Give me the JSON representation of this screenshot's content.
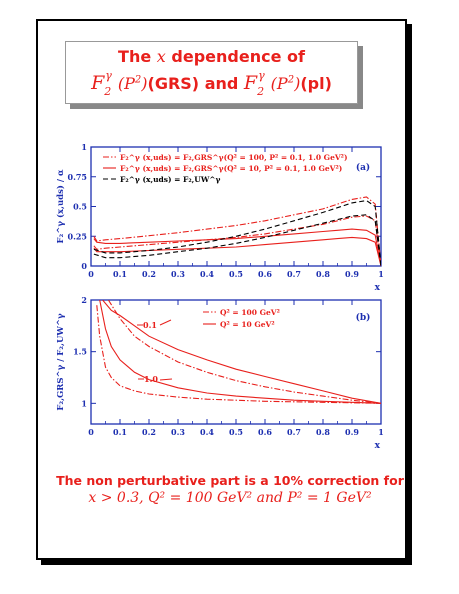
{
  "title": {
    "line1_prefix": "The ",
    "line1_var": "x",
    "line1_suffix": " dependence of",
    "line2_f1": "F",
    "line2_p1": "(P",
    "line2_g1": "(GRS) and ",
    "line2_f2": "F",
    "line2_p2": "(P",
    "line2_g2": "(pl)"
  },
  "footer": {
    "line1": "The non perturbative part is a 10% correction for",
    "line2": "x > 0.3, Q² = 100 GeV² and P² = 1 GeV²"
  },
  "colors": {
    "red": "#e8201c",
    "black": "#000000",
    "axis": "#1d2fb0"
  },
  "chart_data": [
    {
      "type": "line",
      "panel_label": "(a)",
      "ylabel": "F₂^γ (x,uds) / α",
      "xlabel": "x",
      "xlim": [
        0,
        1
      ],
      "ylim": [
        0,
        1
      ],
      "xticks": [
        "0",
        "0.1",
        "0.2",
        "0.3",
        "0.4",
        "0.5",
        "0.6",
        "0.7",
        "0.8",
        "0.9",
        "1"
      ],
      "yticks": [
        "0",
        "0.25",
        "0.5",
        "0.75",
        "1"
      ],
      "legend": [
        {
          "text": "F₂^γ (x,uds) = F₂,GRS^γ(Q² = 100, P² = 0.1, 1.0 GeV²)",
          "color": "#e8201c",
          "dash": "dashdot"
        },
        {
          "text": "F₂^γ (x,uds) = F₂,GRS^γ(Q² = 10, P² = 0.1, 1.0 GeV²)",
          "color": "#e8201c",
          "dash": "solid"
        },
        {
          "text": "F₂^γ (x,uds) = F₂,UW^γ",
          "color": "#000000",
          "dash": "dashed"
        }
      ],
      "series": [
        {
          "color": "#e8201c",
          "dash": "dashdot",
          "x": [
            0.01,
            0.02,
            0.05,
            0.1,
            0.2,
            0.3,
            0.4,
            0.5,
            0.6,
            0.7,
            0.8,
            0.85,
            0.9,
            0.95,
            0.98,
            1.0
          ],
          "y": [
            0.25,
            0.21,
            0.22,
            0.23,
            0.255,
            0.28,
            0.31,
            0.34,
            0.38,
            0.43,
            0.48,
            0.52,
            0.56,
            0.58,
            0.52,
            0.0
          ]
        },
        {
          "color": "#e8201c",
          "dash": "dashdot",
          "x": [
            0.01,
            0.02,
            0.05,
            0.1,
            0.2,
            0.3,
            0.4,
            0.5,
            0.6,
            0.7,
            0.8,
            0.85,
            0.9,
            0.95,
            0.98,
            1.0
          ],
          "y": [
            0.17,
            0.14,
            0.15,
            0.16,
            0.18,
            0.2,
            0.22,
            0.24,
            0.27,
            0.31,
            0.35,
            0.38,
            0.41,
            0.42,
            0.38,
            0.0
          ]
        },
        {
          "color": "#e8201c",
          "dash": "solid",
          "x": [
            0.01,
            0.02,
            0.05,
            0.1,
            0.2,
            0.3,
            0.4,
            0.5,
            0.6,
            0.7,
            0.8,
            0.85,
            0.9,
            0.95,
            0.98,
            1.0
          ],
          "y": [
            0.23,
            0.2,
            0.19,
            0.19,
            0.2,
            0.21,
            0.22,
            0.23,
            0.25,
            0.27,
            0.29,
            0.3,
            0.31,
            0.3,
            0.26,
            0.0
          ]
        },
        {
          "color": "#e8201c",
          "dash": "solid",
          "x": [
            0.01,
            0.02,
            0.05,
            0.1,
            0.2,
            0.3,
            0.4,
            0.5,
            0.6,
            0.7,
            0.8,
            0.85,
            0.9,
            0.95,
            0.98,
            1.0
          ],
          "y": [
            0.15,
            0.12,
            0.12,
            0.12,
            0.13,
            0.14,
            0.15,
            0.16,
            0.18,
            0.2,
            0.22,
            0.23,
            0.24,
            0.23,
            0.2,
            0.0
          ]
        },
        {
          "color": "#000000",
          "dash": "dashed",
          "x": [
            0.01,
            0.05,
            0.1,
            0.2,
            0.3,
            0.4,
            0.5,
            0.6,
            0.7,
            0.8,
            0.85,
            0.9,
            0.95,
            0.98,
            1.0
          ],
          "y": [
            0.14,
            0.11,
            0.11,
            0.13,
            0.16,
            0.2,
            0.25,
            0.31,
            0.38,
            0.45,
            0.49,
            0.53,
            0.55,
            0.5,
            0.0
          ]
        },
        {
          "color": "#000000",
          "dash": "dashed",
          "x": [
            0.01,
            0.05,
            0.1,
            0.2,
            0.3,
            0.4,
            0.5,
            0.6,
            0.7,
            0.8,
            0.85,
            0.9,
            0.95,
            0.98,
            1.0
          ],
          "y": [
            0.1,
            0.07,
            0.07,
            0.09,
            0.12,
            0.15,
            0.19,
            0.24,
            0.3,
            0.36,
            0.39,
            0.42,
            0.43,
            0.38,
            0.0
          ]
        }
      ]
    },
    {
      "type": "line",
      "panel_label": "(b)",
      "ylabel": "F₂,GRS^γ / F₂,UW^γ",
      "xlabel": "x",
      "xlim": [
        0,
        1
      ],
      "ylim": [
        0.8,
        2
      ],
      "xticks": [
        "0",
        "0.1",
        "0.2",
        "0.3",
        "0.4",
        "0.5",
        "0.6",
        "0.7",
        "0.8",
        "0.9",
        "1"
      ],
      "yticks": [
        "1",
        "1.5",
        "2"
      ],
      "legend": [
        {
          "text": "Q² = 100 GeV²",
          "color": "#e8201c",
          "dash": "dashdot"
        },
        {
          "text": "Q² =  10 GeV²",
          "color": "#e8201c",
          "dash": "solid"
        }
      ],
      "annotations": [
        "0.1",
        "1.0"
      ],
      "series": [
        {
          "color": "#e8201c",
          "dash": "solid",
          "x": [
            0.04,
            0.07,
            0.1,
            0.15,
            0.2,
            0.3,
            0.4,
            0.5,
            0.6,
            0.7,
            0.8,
            0.9,
            1.0
          ],
          "y": [
            2.0,
            1.9,
            1.85,
            1.75,
            1.65,
            1.52,
            1.42,
            1.33,
            1.26,
            1.19,
            1.12,
            1.05,
            1.0
          ]
        },
        {
          "color": "#e8201c",
          "dash": "dashdot",
          "x": [
            0.06,
            0.1,
            0.15,
            0.2,
            0.3,
            0.4,
            0.5,
            0.6,
            0.7,
            0.8,
            0.9,
            1.0
          ],
          "y": [
            2.0,
            1.82,
            1.65,
            1.55,
            1.4,
            1.3,
            1.22,
            1.16,
            1.11,
            1.07,
            1.03,
            1.0
          ]
        },
        {
          "color": "#e8201c",
          "dash": "solid",
          "x": [
            0.03,
            0.05,
            0.07,
            0.1,
            0.15,
            0.2,
            0.3,
            0.4,
            0.5,
            0.6,
            0.7,
            0.8,
            0.9,
            1.0
          ],
          "y": [
            2.0,
            1.72,
            1.55,
            1.42,
            1.3,
            1.23,
            1.15,
            1.1,
            1.07,
            1.05,
            1.03,
            1.02,
            1.01,
            1.0
          ]
        },
        {
          "color": "#e8201c",
          "dash": "dashdot",
          "x": [
            0.02,
            0.03,
            0.05,
            0.07,
            0.1,
            0.15,
            0.2,
            0.3,
            0.4,
            0.5,
            0.6,
            0.7,
            0.8,
            0.9,
            1.0
          ],
          "y": [
            1.95,
            1.65,
            1.35,
            1.25,
            1.17,
            1.12,
            1.09,
            1.06,
            1.04,
            1.03,
            1.02,
            1.015,
            1.01,
            1.005,
            1.0
          ]
        }
      ]
    }
  ]
}
